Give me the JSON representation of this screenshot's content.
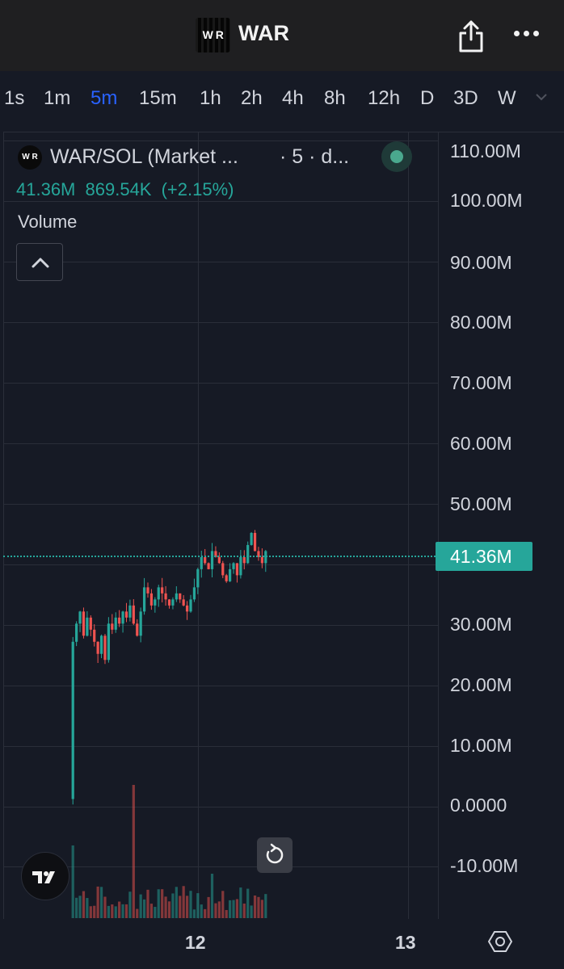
{
  "header": {
    "token_name": "WAR",
    "logo_text": "W R",
    "share_icon": "share-icon",
    "more_icon": "more-dots-icon"
  },
  "timeframes": [
    {
      "label": "1s",
      "active": false
    },
    {
      "label": "1m",
      "active": false
    },
    {
      "label": "5m",
      "active": true
    },
    {
      "label": "15m",
      "active": false
    },
    {
      "label": "1h",
      "active": false
    },
    {
      "label": "2h",
      "active": false
    },
    {
      "label": "4h",
      "active": false
    },
    {
      "label": "8h",
      "active": false
    },
    {
      "label": "12h",
      "active": false
    },
    {
      "label": "D",
      "active": false
    },
    {
      "label": "3D",
      "active": false
    },
    {
      "label": "W",
      "active": false
    }
  ],
  "legend": {
    "title": "WAR/SOL (Market ...",
    "suffix": "· 5 · d...",
    "value": "41.36M",
    "change_abs": "869.54K",
    "change_pct": "(+2.15%)",
    "indicator": "Volume",
    "logo_text": "W R"
  },
  "colors": {
    "up": "#26a69a",
    "down": "#ef5350",
    "active_tab": "#2962ff",
    "background": "#161a25"
  },
  "chart_data": {
    "type": "candlestick",
    "pair": "WAR/SOL",
    "interval": "5",
    "last_price_label": "41.36M",
    "y_ticks": [
      "110.00M",
      "100.00M",
      "90.00M",
      "80.00M",
      "70.00M",
      "60.00M",
      "50.00M",
      "30.00M",
      "20.00M",
      "10.00M",
      "0.0000",
      "-10.00M"
    ],
    "x_ticks": [
      "12",
      "13"
    ],
    "ylim": [
      -10000000,
      110000000
    ],
    "last_price": 41360000,
    "grid": true,
    "price_path_millions": [
      1,
      27,
      30,
      32,
      28,
      31,
      29,
      27,
      25,
      28,
      24,
      30,
      29,
      31,
      30,
      32,
      31,
      33,
      30,
      28,
      32,
      36,
      35,
      33,
      34,
      36,
      35,
      34,
      33,
      34,
      35,
      34,
      33,
      32,
      34,
      36,
      39,
      41,
      40,
      39,
      42,
      41,
      40,
      38,
      37,
      39,
      40,
      38,
      41,
      40,
      43,
      45,
      42,
      41,
      40,
      42
    ]
  }
}
